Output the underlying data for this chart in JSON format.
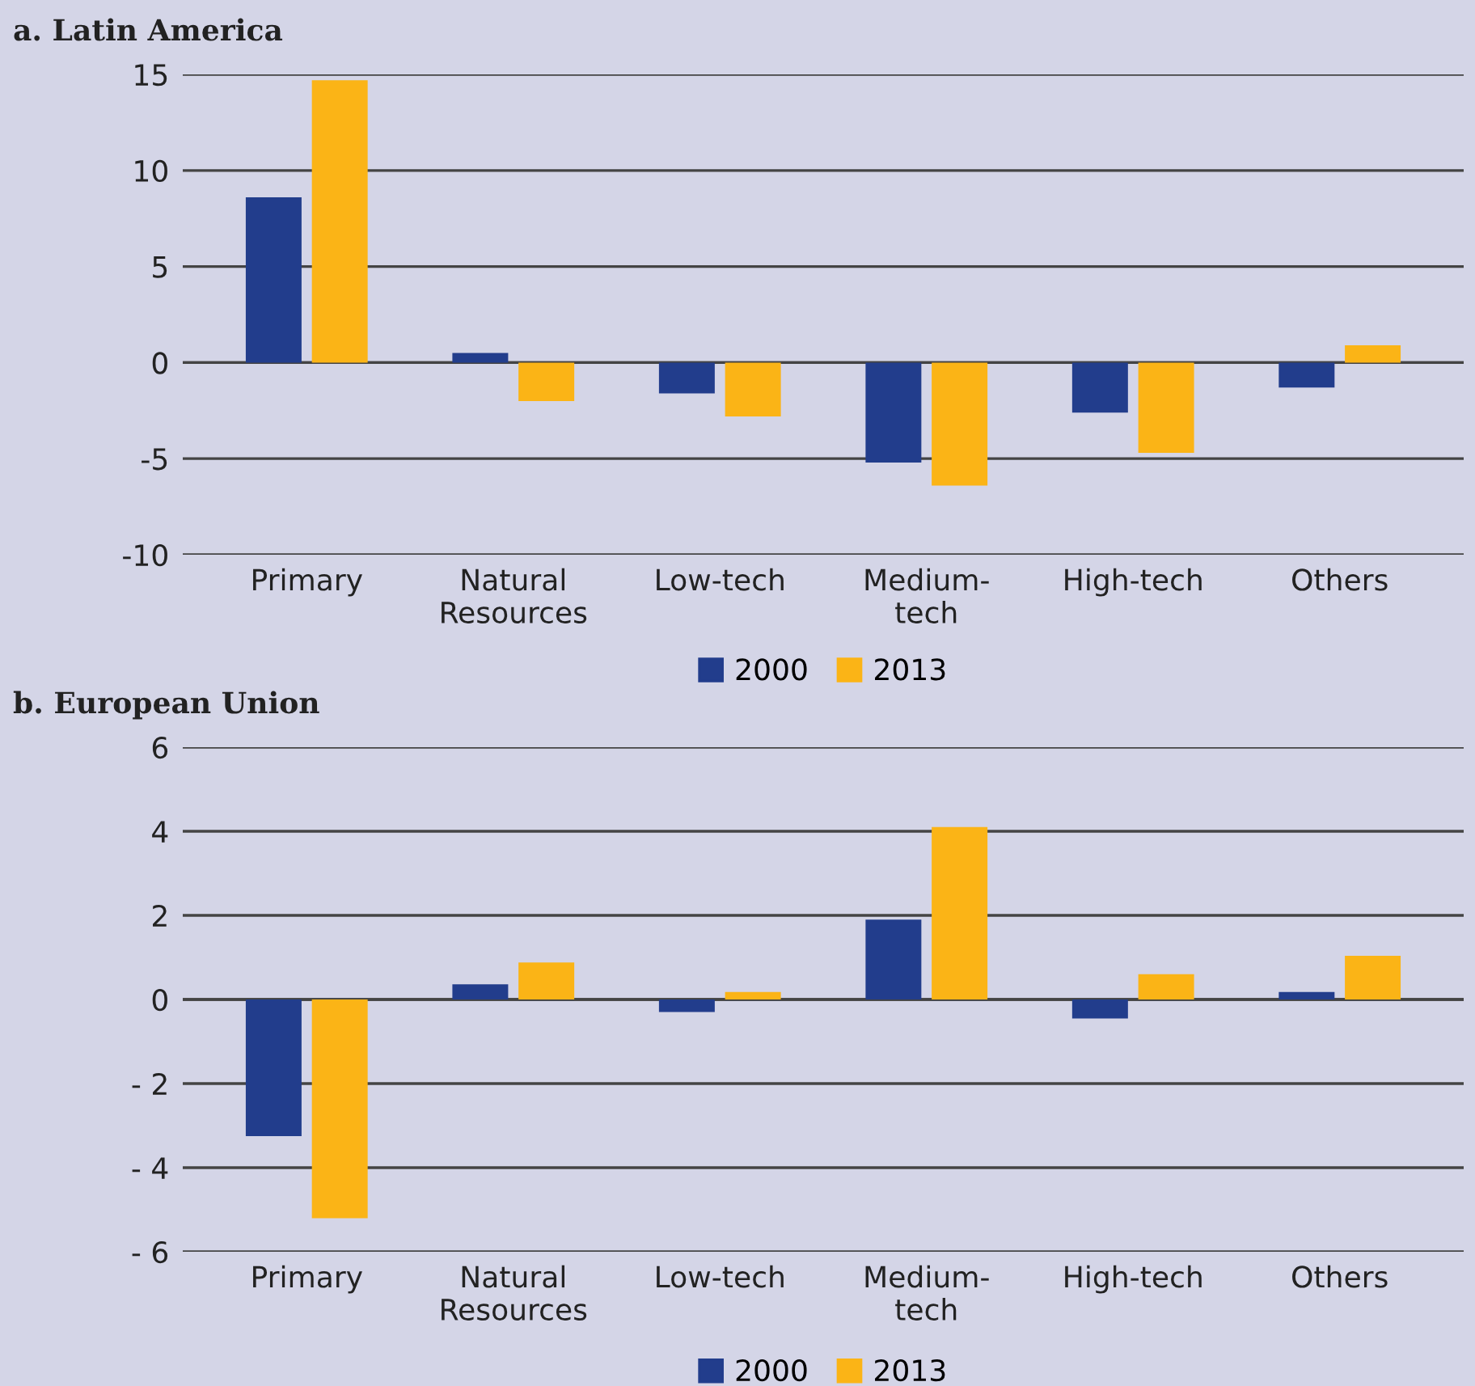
{
  "chart_data": [
    {
      "type": "bar",
      "title": "a. Latin America",
      "categories": [
        "Primary",
        "Natural\nResources",
        "Low-tech",
        "Medium-\ntech",
        "High-tech",
        "Others"
      ],
      "series": [
        {
          "name": "2000",
          "color": "#223d8c",
          "values": [
            8.6,
            0.5,
            -1.6,
            -5.2,
            -2.6,
            -1.3
          ]
        },
        {
          "name": "2013",
          "color": "#fbb416",
          "values": [
            14.7,
            -2.0,
            -2.8,
            -6.4,
            -4.7,
            0.9
          ]
        }
      ],
      "ylim": [
        -10,
        15
      ],
      "yticks": [
        -10,
        -5,
        0,
        5,
        10,
        15
      ],
      "grid": "y",
      "legend": "bottom"
    },
    {
      "type": "bar",
      "title": "b. European Union",
      "categories": [
        "Primary",
        "Natural\nResources",
        "Low-tech",
        "Medium-\ntech",
        "High-tech",
        "Others"
      ],
      "series": [
        {
          "name": "2000",
          "color": "#223d8c",
          "values": [
            -3.25,
            0.36,
            -0.3,
            1.9,
            -0.45,
            0.18
          ]
        },
        {
          "name": "2013",
          "color": "#fbb416",
          "values": [
            -5.2,
            0.88,
            0.18,
            4.1,
            0.6,
            1.04
          ]
        }
      ],
      "ylim": [
        -6,
        6
      ],
      "yticks": [
        {
          "value": -6,
          "label": "- 6"
        },
        {
          "value": -4,
          "label": "- 4"
        },
        {
          "value": -2,
          "label": "- 2"
        },
        0,
        2,
        4,
        6
      ],
      "grid": "y",
      "legend": "bottom"
    }
  ]
}
